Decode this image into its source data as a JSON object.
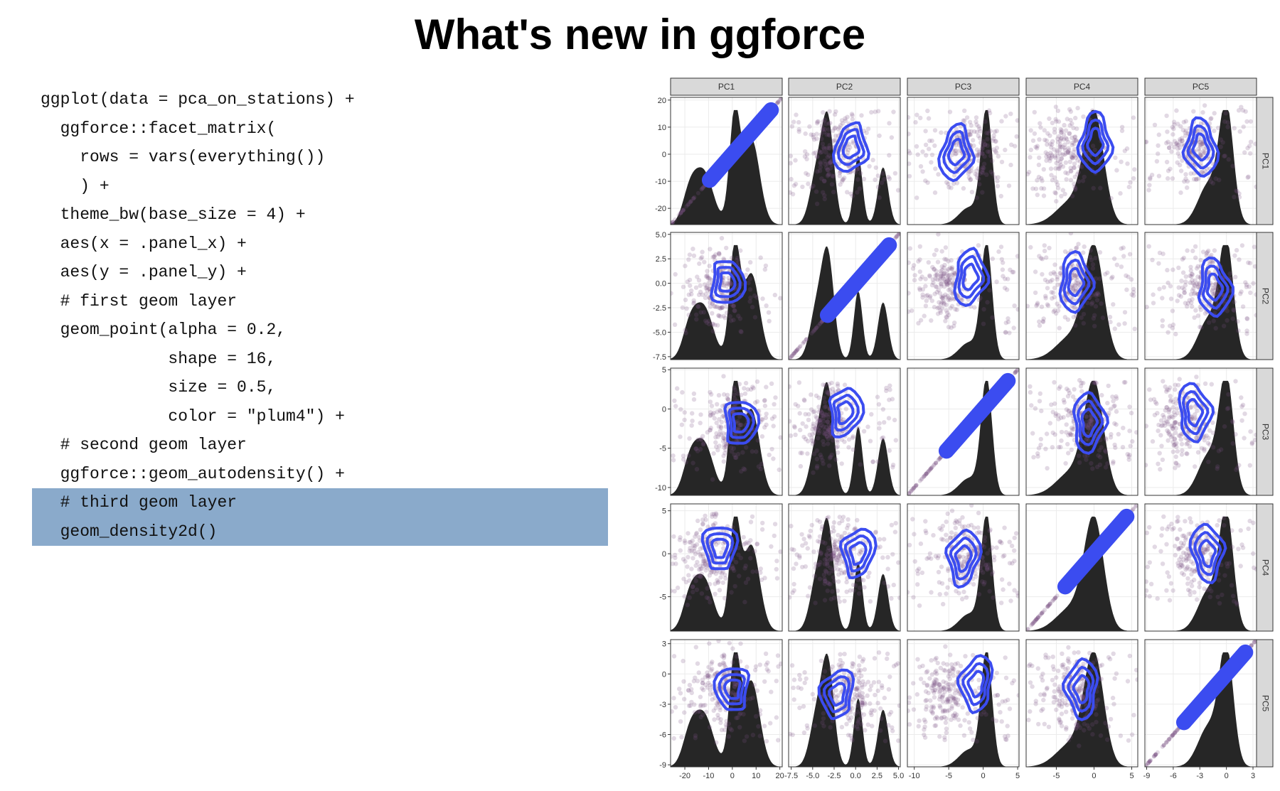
{
  "slide": {
    "title": "What's new in ggforce"
  },
  "code": {
    "lines": [
      {
        "text": "ggplot(data = pca_on_stations) +",
        "highlight": false
      },
      {
        "text": "  ggforce::facet_matrix(",
        "highlight": false
      },
      {
        "text": "    rows = vars(everything())",
        "highlight": false
      },
      {
        "text": "    ) +",
        "highlight": false
      },
      {
        "text": "  theme_bw(base_size = 4) +",
        "highlight": false
      },
      {
        "text": "  aes(x = .panel_x) +",
        "highlight": false
      },
      {
        "text": "  aes(y = .panel_y) +",
        "highlight": false
      },
      {
        "text": "  # first geom layer",
        "highlight": false
      },
      {
        "text": "  geom_point(alpha = 0.2,",
        "highlight": false
      },
      {
        "text": "             shape = 16,",
        "highlight": false
      },
      {
        "text": "             size = 0.5,",
        "highlight": false
      },
      {
        "text": "             color = \"plum4\") +",
        "highlight": false
      },
      {
        "text": "  # second geom layer",
        "highlight": false
      },
      {
        "text": "  ggforce::geom_autodensity() +",
        "highlight": false
      },
      {
        "text": "  # third geom layer",
        "highlight": true
      },
      {
        "text": "  geom_density2d()",
        "highlight": true
      }
    ],
    "highlight_color": "#8aaacb"
  },
  "chart_data": {
    "type": "scatter",
    "layout": "facet_matrix",
    "variables": [
      "PC1",
      "PC2",
      "PC3",
      "PC4",
      "PC5"
    ],
    "x_ticks": [
      [
        -20,
        -10,
        0,
        10,
        20
      ],
      [
        -7.5,
        -5.0,
        -2.5,
        0.0,
        2.5,
        5.0
      ],
      [
        -10,
        -5,
        0,
        5
      ],
      [
        -5,
        0,
        5
      ],
      [
        -9,
        -6,
        -3,
        0,
        3
      ]
    ],
    "x_tick_labels": [
      [
        "-20",
        "-10",
        "0",
        "10",
        "20"
      ],
      [
        "-7.5",
        "-5.0",
        "-2.5",
        "0.0",
        "2.5",
        "5.0"
      ],
      [
        "-10",
        "-5",
        "0",
        "5"
      ],
      [
        "-5",
        "0",
        "5"
      ],
      [
        "-9",
        "-6",
        "-3",
        "0",
        "3"
      ]
    ],
    "y_ticks": [
      [
        -20,
        -10,
        0,
        10,
        20
      ],
      [
        -7.5,
        -5.0,
        -2.5,
        0.0,
        2.5,
        5.0
      ],
      [
        -10,
        -5,
        0,
        5
      ],
      [
        -5,
        0,
        5
      ],
      [
        -9,
        -6,
        -3,
        0,
        3
      ]
    ],
    "y_tick_labels": [
      [
        "-20",
        "-10",
        "0",
        "10",
        "20"
      ],
      [
        "-7.5",
        "-5.0",
        "-2.5",
        "0.0",
        "2.5",
        "5.0"
      ],
      [
        "-10",
        "-5",
        "0",
        "5"
      ],
      [
        "-5",
        "0",
        "5"
      ],
      [
        "-9",
        "-6",
        "-3",
        "0",
        "3"
      ]
    ],
    "ranges": [
      [
        -26,
        21
      ],
      [
        -7.8,
        5.2
      ],
      [
        -11,
        5.2
      ],
      [
        -9,
        5.8
      ],
      [
        -9.2,
        3.4
      ]
    ],
    "density_peaks": [
      [
        [
          -12,
          0.45,
          4
        ],
        [
          -18,
          0.25,
          3
        ],
        [
          1,
          0.95,
          2.2
        ],
        [
          8,
          0.75,
          3.5
        ]
      ],
      [
        [
          -3.2,
          0.85,
          0.7
        ],
        [
          0.3,
          0.6,
          0.5
        ],
        [
          -4.5,
          0.45,
          0.8
        ],
        [
          3.2,
          0.5,
          0.6
        ]
      ],
      [
        [
          0.5,
          1.0,
          0.8
        ],
        [
          -2,
          0.15,
          1.5
        ]
      ],
      [
        [
          0,
          0.95,
          1.3
        ],
        [
          -3,
          0.2,
          2
        ]
      ],
      [
        [
          0,
          1.0,
          0.8
        ],
        [
          -2,
          0.35,
          1.2
        ]
      ]
    ],
    "point_color": "plum4",
    "point_alpha": 0.2,
    "density2d_color": "#3b4cf0",
    "autodensity_fill": "#262626",
    "grid": true,
    "theme": "bw"
  }
}
